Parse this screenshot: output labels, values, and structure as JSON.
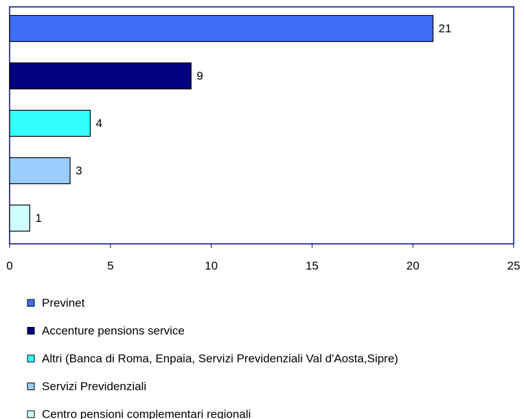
{
  "chart_data": {
    "type": "bar",
    "orientation": "horizontal",
    "series": [
      {
        "name": "Previnet",
        "color": "#3f6ef5",
        "values": [
          21
        ]
      },
      {
        "name": "Accenture pensions service",
        "color": "#000080",
        "values": [
          9
        ]
      },
      {
        "name": "Altri (Banca di Roma, Enpaia, Servizi Previdenziali Val d'Aosta,Sipre)",
        "color": "#33ffff",
        "values": [
          4
        ]
      },
      {
        "name": "Servizi Previdenziali",
        "color": "#99ccff",
        "values": [
          3
        ]
      },
      {
        "name": "Centro pensioni complementari regionali",
        "color": "#ccffff",
        "values": [
          1
        ]
      }
    ],
    "xlim": [
      0,
      25
    ],
    "xticks": [
      0,
      5,
      10,
      15,
      20,
      25
    ],
    "legend": "bottom"
  }
}
